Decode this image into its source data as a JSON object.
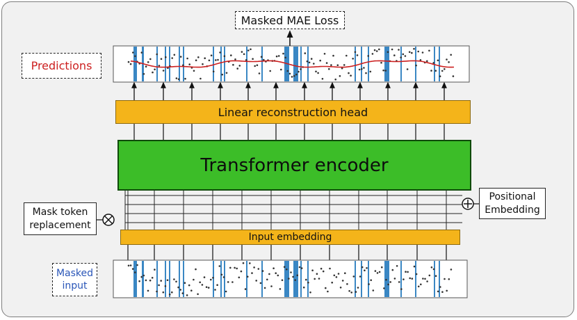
{
  "loss": {
    "label": "Masked MAE Loss"
  },
  "predictions": {
    "label": "Predictions"
  },
  "masked_input": {
    "line1": "Masked",
    "line2": "input"
  },
  "reconstruction_head": {
    "label": "Linear reconstruction head"
  },
  "encoder": {
    "label": "Transformer encoder"
  },
  "input_embedding": {
    "label": "Input embedding"
  },
  "mask_token": {
    "line1": "Mask token",
    "line2": "replacement"
  },
  "positional_embedding": {
    "line1": "Positional",
    "line2": "Embedding"
  },
  "colors": {
    "orange": "#f4b41a",
    "green": "#3cbd28",
    "mask_blue": "#3a87c4",
    "predictions_red": "#cc1f1f",
    "masked_blue_text": "#2a56b8",
    "points": "#333333"
  },
  "icons": {
    "multiply": "circled-times-icon",
    "add": "circled-plus-icon"
  }
}
